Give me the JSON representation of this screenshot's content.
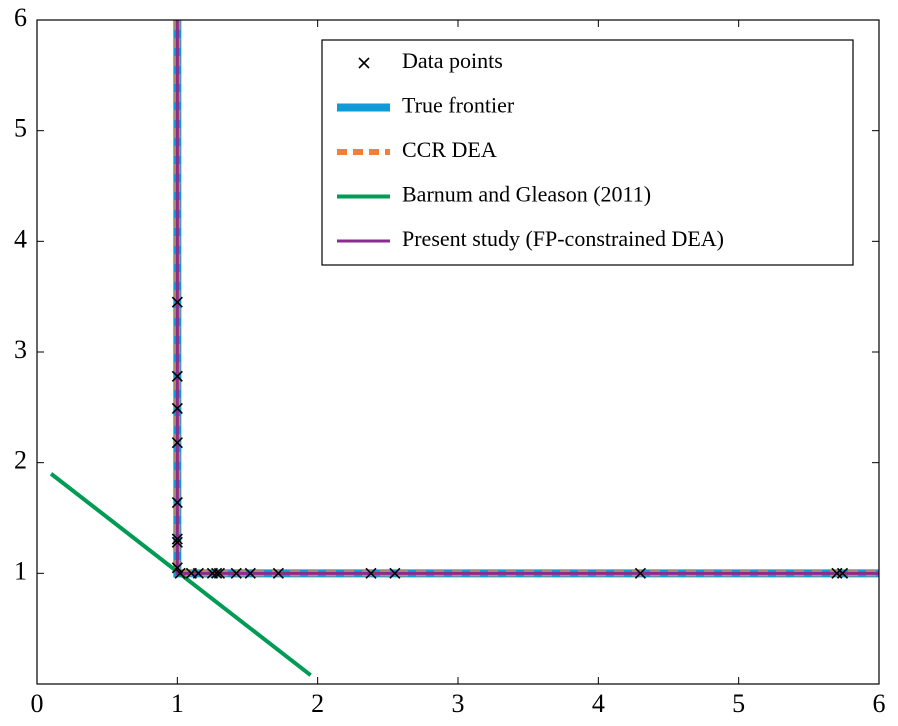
{
  "chart_data": {
    "type": "line",
    "xlim": [
      0,
      6
    ],
    "xticks": [
      0,
      1,
      2,
      3,
      4,
      5,
      6
    ],
    "ylim": [
      0,
      6
    ],
    "yticks": [
      1,
      2,
      3,
      4,
      5,
      6
    ],
    "legend": "upper right",
    "series": [
      {
        "name": "Data points",
        "type": "scatter",
        "color": "#000000",
        "x": [
          1,
          1,
          1,
          1,
          1,
          1,
          1,
          1,
          1.02,
          1.1,
          1.15,
          1.25,
          1.28,
          1.3,
          1.42,
          1.52,
          1.72,
          2.38,
          2.55,
          4.3,
          5.7,
          5.74
        ],
        "values": [
          3.45,
          2.78,
          2.49,
          2.18,
          1.64,
          1.31,
          1.28,
          1.05,
          1,
          1,
          1,
          1,
          1,
          1,
          1,
          1,
          1,
          1,
          1,
          1,
          1,
          1
        ]
      },
      {
        "name": "True frontier",
        "type": "line",
        "color": "#0e9bd8",
        "width": 8,
        "x": [
          1,
          1,
          6
        ],
        "values": [
          6,
          1,
          1
        ]
      },
      {
        "name": "CCR DEA",
        "type": "line",
        "color": "#f07f3c",
        "width": 6,
        "dashed": true,
        "x": [
          1,
          1,
          6
        ],
        "values": [
          6,
          1,
          1
        ]
      },
      {
        "name": "Barnum and Gleason (2011)",
        "type": "line",
        "color": "#009b55",
        "width": 4,
        "x": [
          0.1,
          1.95
        ],
        "values": [
          1.9,
          0.08
        ]
      },
      {
        "name": "Present study (FP-constrained DEA)",
        "type": "line",
        "color": "#8a2c8e",
        "width": 3,
        "x": [
          1,
          1,
          6
        ],
        "values": [
          6,
          1,
          1
        ]
      }
    ]
  }
}
